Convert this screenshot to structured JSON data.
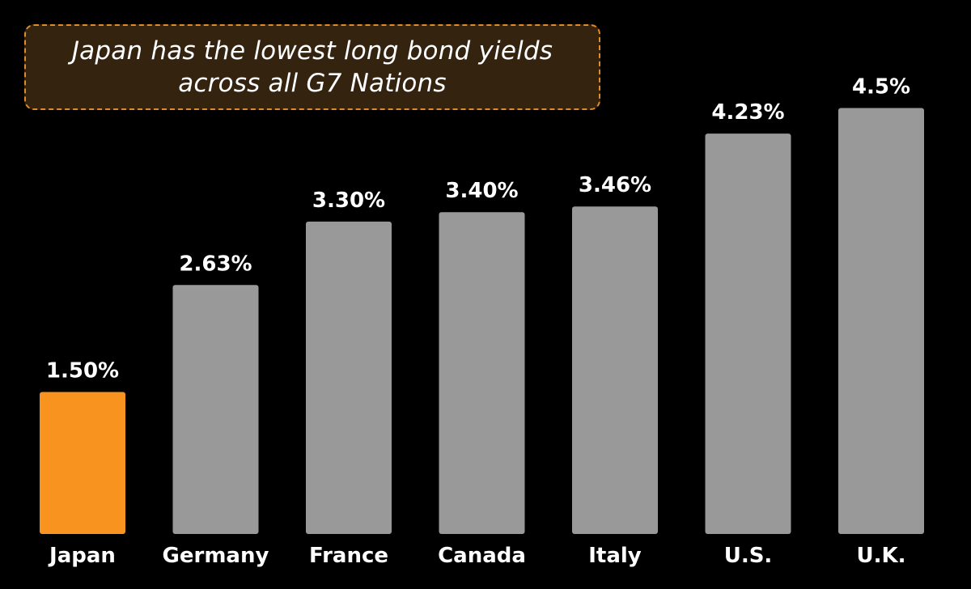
{
  "chart_data": {
    "type": "bar",
    "title": "Japan has the lowest long bond yields across all G7 Nations",
    "categories": [
      "Japan",
      "Germany",
      "France",
      "Canada",
      "Italy",
      "U.S.",
      "U.K."
    ],
    "values": [
      1.5,
      2.63,
      3.3,
      3.4,
      3.46,
      4.23,
      4.5
    ],
    "value_labels": [
      "1.50%",
      "2.63%",
      "3.30%",
      "3.40%",
      "3.46%",
      "4.23%",
      "4.5%"
    ],
    "ylim": [
      0,
      5.2
    ],
    "highlight_category": "Japan",
    "colors": {
      "default_bar": "#999999",
      "highlight_bar": "#f7931e",
      "background": "#000000",
      "text": "#ffffff",
      "callout_fill": "#33230f",
      "callout_border": "#e08a2a"
    },
    "grid": false,
    "legend": "none"
  }
}
